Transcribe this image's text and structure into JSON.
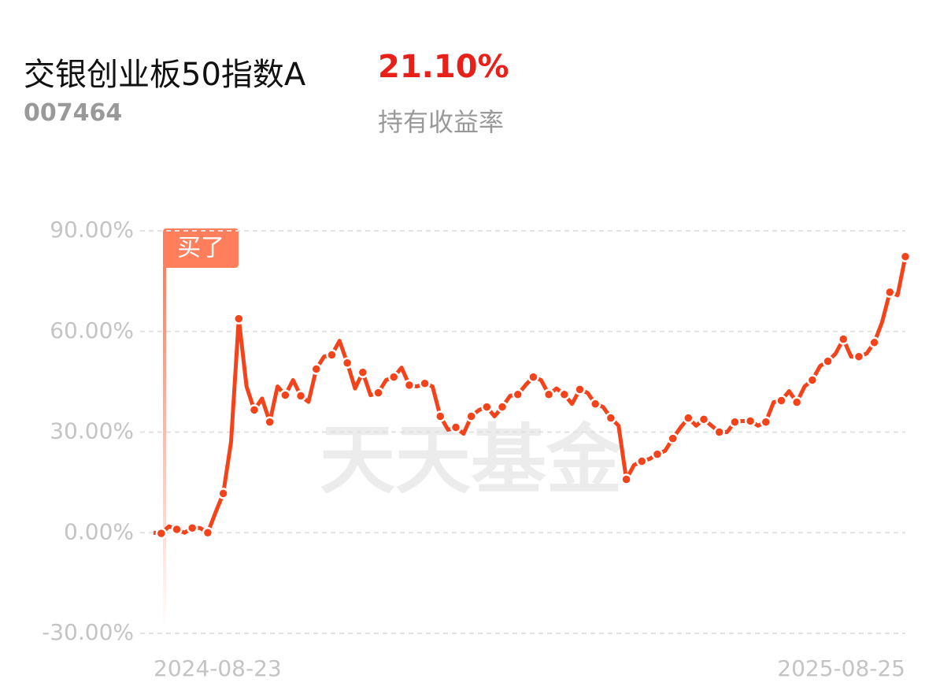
{
  "header": {
    "fund_name": "交银创业板50指数A",
    "code": "007464",
    "return": "21.10%",
    "return_label": "持有收益率"
  },
  "chart_data": {
    "type": "line",
    "watermark": "天天基金",
    "annotation": "买了",
    "categories": [
      "2024-08-23",
      null,
      null,
      null,
      null,
      null,
      null,
      null,
      null,
      null,
      null,
      null,
      null,
      null,
      null,
      null,
      null,
      null,
      null,
      null,
      null,
      null,
      null,
      null,
      null,
      null,
      null,
      null,
      null,
      null,
      null,
      null,
      null,
      null,
      null,
      null,
      null,
      null,
      null,
      null,
      null,
      null,
      null,
      null,
      null,
      null,
      null,
      null,
      null,
      null,
      null,
      null,
      null,
      null,
      null,
      null,
      null,
      null,
      null,
      null,
      null,
      null,
      null,
      null,
      null,
      null,
      null,
      null,
      null,
      null,
      null,
      null,
      null,
      null,
      null,
      null,
      null,
      null,
      null,
      null,
      null,
      null,
      null,
      null,
      null,
      null,
      null,
      null,
      null,
      null,
      null,
      null,
      null,
      null,
      null,
      null,
      null,
      "2025-08-25"
    ],
    "series": [
      {
        "color": "#f4431a",
        "values": [
          0,
          -0.2,
          1.9,
          1,
          0,
          1.4,
          1.4,
          0,
          6,
          11.7,
          27,
          63.8,
          43.6,
          36.6,
          40,
          33,
          43.6,
          41,
          45.5,
          40.8,
          39,
          48.8,
          52.5,
          53,
          57.2,
          50.6,
          43,
          47.8,
          41,
          41.7,
          45.5,
          46.4,
          49.2,
          44,
          43.6,
          44.5,
          43.6,
          34.7,
          30.7,
          31.4,
          29.5,
          34.7,
          36.6,
          37.5,
          34.7,
          37.5,
          40.8,
          41.2,
          44,
          46.4,
          45.5,
          41.2,
          43,
          41.2,
          38.4,
          42.7,
          41.7,
          38.4,
          37.5,
          34.2,
          31.9,
          15.9,
          20.2,
          21.3,
          22,
          23.4,
          24.4,
          28.1,
          31.4,
          34.2,
          31.9,
          33.8,
          31.9,
          30,
          30,
          33,
          33.3,
          33.3,
          31.9,
          33,
          38.9,
          39.4,
          42.2,
          38.9,
          43.6,
          45.5,
          49.7,
          51.1,
          53.4,
          57.7,
          52.5,
          52.5,
          53.4,
          56.7,
          62.8,
          71.7,
          70.8,
          82.3
        ]
      }
    ],
    "ylim": [
      -30,
      90
    ],
    "yticks": [
      {
        "value": 90,
        "label": "90.00%"
      },
      {
        "value": 60,
        "label": "60.00%"
      },
      {
        "value": 30,
        "label": "30.00%"
      },
      {
        "value": 0,
        "label": "0.00%"
      },
      {
        "value": -30,
        "label": "-30.00%"
      }
    ],
    "grid": true
  }
}
